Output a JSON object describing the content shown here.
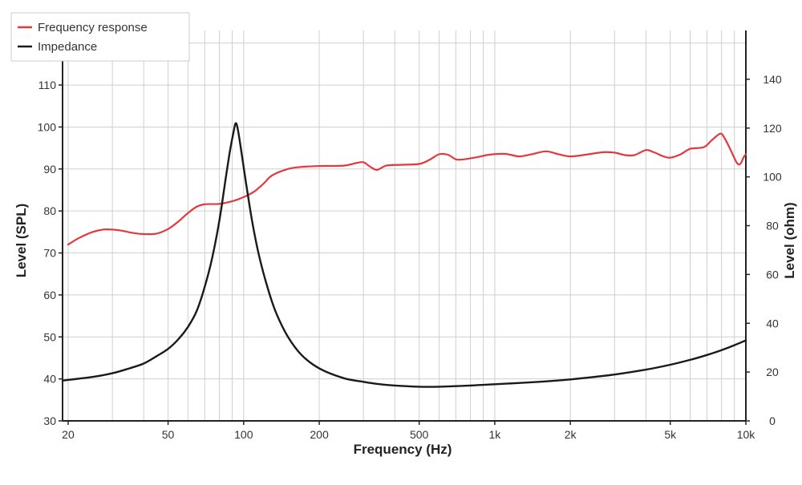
{
  "chart_data": {
    "type": "line",
    "xlabel": "Frequency (Hz)",
    "ylabel_left": "Level (SPL)",
    "ylabel_right": "Level (ohm)",
    "x_scale": "log",
    "xlim": [
      19,
      10000
    ],
    "ylim_left": [
      30,
      123
    ],
    "ylim_right": [
      0,
      160
    ],
    "x_ticks": [
      {
        "value": 20,
        "label": "20"
      },
      {
        "value": 50,
        "label": "50"
      },
      {
        "value": 100,
        "label": "100"
      },
      {
        "value": 200,
        "label": "200"
      },
      {
        "value": 500,
        "label": "500"
      },
      {
        "value": 1000,
        "label": "1k"
      },
      {
        "value": 2000,
        "label": "2k"
      },
      {
        "value": 5000,
        "label": "5k"
      },
      {
        "value": 10000,
        "label": "10k"
      }
    ],
    "y_ticks_left": [
      30,
      40,
      50,
      60,
      70,
      80,
      90,
      100,
      110,
      120
    ],
    "y_ticks_right": [
      0,
      20,
      40,
      60,
      80,
      100,
      120,
      140
    ],
    "grid": true,
    "legend_position": "top-left",
    "colors": {
      "frequency_response": "#e0393e",
      "impedance": "#1a1a1a",
      "grid": "#cfcfcf",
      "axis": "#222222"
    },
    "series": [
      {
        "name": "Frequency response",
        "axis": "left",
        "color": "#e0393e",
        "points": [
          [
            20,
            72
          ],
          [
            22,
            73.5
          ],
          [
            25,
            75
          ],
          [
            28,
            75.6
          ],
          [
            32,
            75.4
          ],
          [
            36,
            74.8
          ],
          [
            40,
            74.5
          ],
          [
            45,
            74.6
          ],
          [
            50,
            75.7
          ],
          [
            55,
            77.5
          ],
          [
            60,
            79.5
          ],
          [
            65,
            81
          ],
          [
            70,
            81.6
          ],
          [
            80,
            81.7
          ],
          [
            90,
            82.3
          ],
          [
            100,
            83.3
          ],
          [
            110,
            84.6
          ],
          [
            120,
            86.5
          ],
          [
            130,
            88.5
          ],
          [
            150,
            90
          ],
          [
            170,
            90.5
          ],
          [
            200,
            90.7
          ],
          [
            250,
            90.8
          ],
          [
            280,
            91.4
          ],
          [
            300,
            91.6
          ],
          [
            320,
            90.5
          ],
          [
            340,
            89.8
          ],
          [
            370,
            90.8
          ],
          [
            420,
            91
          ],
          [
            500,
            91.2
          ],
          [
            550,
            92.2
          ],
          [
            600,
            93.5
          ],
          [
            650,
            93.4
          ],
          [
            700,
            92.3
          ],
          [
            750,
            92.3
          ],
          [
            850,
            92.8
          ],
          [
            950,
            93.4
          ],
          [
            1100,
            93.6
          ],
          [
            1250,
            93
          ],
          [
            1400,
            93.5
          ],
          [
            1600,
            94.2
          ],
          [
            1800,
            93.5
          ],
          [
            2000,
            93
          ],
          [
            2300,
            93.4
          ],
          [
            2700,
            94
          ],
          [
            3000,
            93.9
          ],
          [
            3300,
            93.3
          ],
          [
            3600,
            93.3
          ],
          [
            4000,
            94.5
          ],
          [
            4300,
            94
          ],
          [
            4700,
            93
          ],
          [
            5000,
            92.7
          ],
          [
            5500,
            93.5
          ],
          [
            6000,
            94.8
          ],
          [
            6800,
            95.2
          ],
          [
            7300,
            96.8
          ],
          [
            7900,
            98.4
          ],
          [
            8200,
            97.5
          ],
          [
            8700,
            94.5
          ],
          [
            9200,
            91.5
          ],
          [
            9500,
            91.2
          ],
          [
            9800,
            92.8
          ],
          [
            10000,
            93.5
          ]
        ]
      },
      {
        "name": "Impedance",
        "axis": "right",
        "color": "#1a1a1a",
        "points": [
          [
            19,
            16.5
          ],
          [
            25,
            18
          ],
          [
            30,
            19.5
          ],
          [
            35,
            21.5
          ],
          [
            40,
            23.5
          ],
          [
            45,
            26.5
          ],
          [
            50,
            29.5
          ],
          [
            55,
            33.5
          ],
          [
            60,
            38.5
          ],
          [
            65,
            45
          ],
          [
            70,
            55
          ],
          [
            75,
            67
          ],
          [
            80,
            82
          ],
          [
            85,
            100
          ],
          [
            88,
            110
          ],
          [
            91,
            118
          ],
          [
            93,
            122
          ],
          [
            95,
            119
          ],
          [
            98,
            110
          ],
          [
            102,
            98
          ],
          [
            108,
            82
          ],
          [
            115,
            68
          ],
          [
            125,
            54
          ],
          [
            135,
            44
          ],
          [
            150,
            34.5
          ],
          [
            170,
            27
          ],
          [
            200,
            21.5
          ],
          [
            250,
            17.5
          ],
          [
            300,
            16
          ],
          [
            350,
            15
          ],
          [
            400,
            14.5
          ],
          [
            500,
            14
          ],
          [
            600,
            14
          ],
          [
            800,
            14.5
          ],
          [
            1000,
            15
          ],
          [
            1500,
            16
          ],
          [
            2000,
            17
          ],
          [
            3000,
            19
          ],
          [
            4000,
            21
          ],
          [
            5000,
            23
          ],
          [
            6000,
            25
          ],
          [
            7000,
            27
          ],
          [
            8000,
            29
          ],
          [
            9000,
            31
          ],
          [
            10000,
            33
          ]
        ]
      }
    ]
  }
}
